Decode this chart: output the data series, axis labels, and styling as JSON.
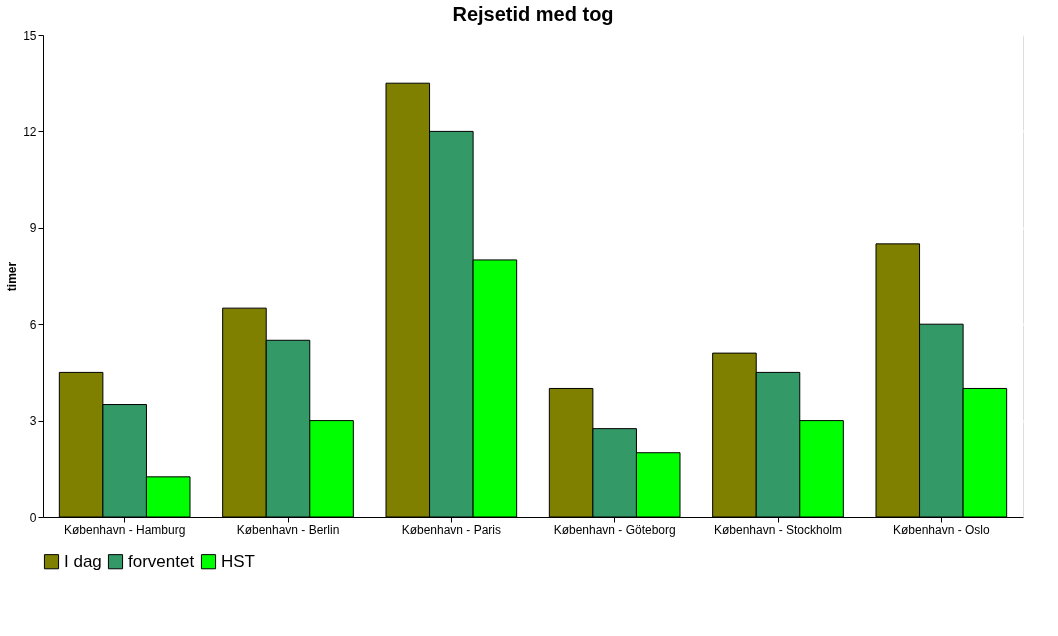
{
  "chart_data": {
    "type": "bar",
    "title": "Rejsetid med tog",
    "ylabel": "timer",
    "categories": [
      "København - Hamburg",
      "København - Berlin",
      "København - Paris",
      "København - Göteborg",
      "København - Stockholm",
      "København - Oslo"
    ],
    "series": [
      {
        "name": "I dag",
        "color": "#808000",
        "values": [
          4.5,
          6.5,
          13.5,
          4,
          5.1,
          8.5
        ]
      },
      {
        "name": "forventet",
        "color": "#339966",
        "values": [
          3.5,
          5.5,
          12,
          2.75,
          4.5,
          6
        ]
      },
      {
        "name": "HST",
        "color": "#00ff00",
        "values": [
          1.25,
          3,
          8,
          2,
          3,
          4
        ]
      }
    ],
    "ylim": [
      0,
      15
    ],
    "yticks": [
      0,
      3,
      6,
      9,
      12,
      15
    ],
    "grid": "y",
    "legend": "bottom"
  }
}
